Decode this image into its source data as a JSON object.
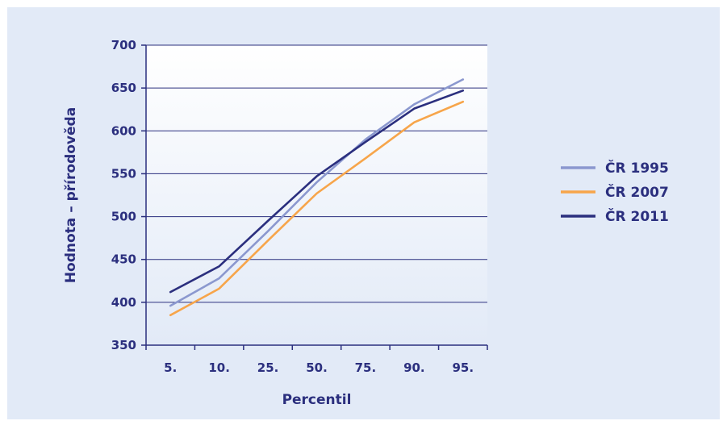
{
  "chart_data": {
    "type": "line",
    "xlabel": "Percentil",
    "ylabel": "Hodnota – přírodověda",
    "categories": [
      "5.",
      "10.",
      "25.",
      "50.",
      "75.",
      "90.",
      "95."
    ],
    "ylim": [
      350,
      700
    ],
    "yticks": [
      350,
      400,
      450,
      500,
      550,
      600,
      650,
      700
    ],
    "grid": true,
    "legend_position": "right",
    "series": [
      {
        "name": "ČR 1995",
        "color": "#8b98cf",
        "values": [
          396,
          428,
          483,
          540,
          590,
          631,
          660
        ]
      },
      {
        "name": "ČR 2007",
        "color": "#f7a54a",
        "values": [
          385,
          416,
          472,
          527,
          568,
          610,
          634
        ]
      },
      {
        "name": "ČR 2011",
        "color": "#2b2f7e",
        "values": [
          412,
          442,
          495,
          547,
          587,
          626,
          647
        ]
      }
    ]
  }
}
